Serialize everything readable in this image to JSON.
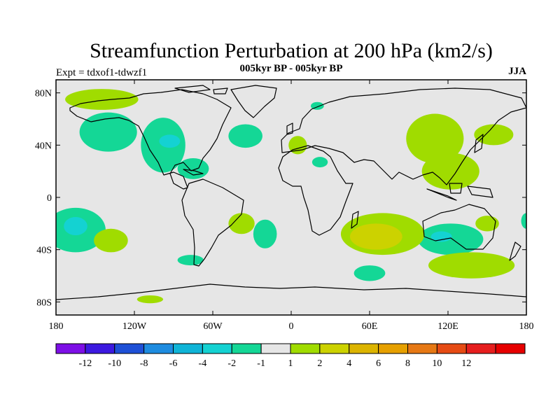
{
  "chart_data": {
    "type": "heatmap",
    "title": "Streamfunction Perturbation at 200 hPa (km2/s)",
    "subtitle_center": "005kyr BP - 005kyr BP",
    "subtitle_left": "Expt = tdxof1-tdwzf1",
    "subtitle_right": "JJA",
    "x_range": [
      -180,
      180
    ],
    "y_range": [
      -90,
      90
    ],
    "x_ticks": [
      {
        "value": -180,
        "label": "180"
      },
      {
        "value": -120,
        "label": "120W"
      },
      {
        "value": -60,
        "label": "60W"
      },
      {
        "value": 0,
        "label": "0"
      },
      {
        "value": 60,
        "label": "60E"
      },
      {
        "value": 120,
        "label": "120E"
      },
      {
        "value": 180,
        "label": "180"
      }
    ],
    "y_ticks": [
      {
        "value": 80,
        "label": "80N"
      },
      {
        "value": 40,
        "label": "40N"
      },
      {
        "value": 0,
        "label": "0"
      },
      {
        "value": -40,
        "label": "40S"
      },
      {
        "value": -80,
        "label": "80S"
      }
    ],
    "colorbar": {
      "labels": [
        "-12",
        "-10",
        "-8",
        "-6",
        "-4",
        "-2",
        "-1",
        "1",
        "2",
        "4",
        "6",
        "8",
        "10",
        "12"
      ],
      "colors": [
        "#7d0fe6",
        "#3c19e0",
        "#1e50d6",
        "#1e8ce0",
        "#0fb4d7",
        "#14d2d2",
        "#14d796",
        "#e6e6e6",
        "#a0dc00",
        "#ccd200",
        "#dcb400",
        "#e6a000",
        "#e67814",
        "#e64b14",
        "#e61e1e",
        "#e60000"
      ]
    },
    "anomalies": [
      {
        "lon": -140,
        "lat": 50,
        "dlon": 22,
        "dlat": 15,
        "level": "-1"
      },
      {
        "lon": -98,
        "lat": 40,
        "dlon": 17,
        "dlat": 21,
        "level": "-1"
      },
      {
        "lon": -93,
        "lat": 43,
        "dlon": 8,
        "dlat": 5,
        "level": "-2"
      },
      {
        "lon": -75,
        "lat": 22,
        "dlon": 12,
        "dlat": 8,
        "level": "-1"
      },
      {
        "lon": -35,
        "lat": 47,
        "dlon": 13,
        "dlat": 9,
        "level": "-1"
      },
      {
        "lon": -165,
        "lat": -25,
        "dlon": 23,
        "dlat": 17,
        "level": "-1"
      },
      {
        "lon": -165,
        "lat": -22,
        "dlon": 9,
        "dlat": 7,
        "level": "-2"
      },
      {
        "lon": -20,
        "lat": -28,
        "dlon": 9,
        "dlat": 11,
        "level": "-1"
      },
      {
        "lon": 60,
        "lat": -58,
        "dlon": 12,
        "dlat": 6,
        "level": "-1"
      },
      {
        "lon": 22,
        "lat": 27,
        "dlon": 6,
        "dlat": 4,
        "level": "-1"
      },
      {
        "lon": -77,
        "lat": -48,
        "dlon": 10,
        "dlat": 4,
        "level": "-1"
      },
      {
        "lon": 20,
        "lat": 70,
        "dlon": 5,
        "dlat": 3,
        "level": "-1"
      },
      {
        "lon": 122,
        "lat": -32,
        "dlon": 25,
        "dlat": 12,
        "level": "-1"
      },
      {
        "lon": 180,
        "lat": -18,
        "dlon": 4,
        "dlat": 6,
        "level": "-1"
      },
      {
        "lon": 115,
        "lat": -30,
        "dlon": 8,
        "dlat": 4,
        "level": "-2"
      },
      {
        "lon": -145,
        "lat": 75,
        "dlon": 28,
        "dlat": 8,
        "level": "1"
      },
      {
        "lon": 70,
        "lat": -28,
        "dlon": 32,
        "dlat": 16,
        "level": "1"
      },
      {
        "lon": 65,
        "lat": -30,
        "dlon": 20,
        "dlat": 10,
        "level": "2"
      },
      {
        "lon": 110,
        "lat": 45,
        "dlon": 22,
        "dlat": 19,
        "level": "1"
      },
      {
        "lon": 122,
        "lat": 20,
        "dlon": 22,
        "dlat": 14,
        "level": "1"
      },
      {
        "lon": 155,
        "lat": 48,
        "dlon": 15,
        "dlat": 8,
        "level": "1"
      },
      {
        "lon": 5,
        "lat": 40,
        "dlon": 7,
        "dlat": 7,
        "level": "1"
      },
      {
        "lon": -138,
        "lat": -33,
        "dlon": 13,
        "dlat": 9,
        "level": "1"
      },
      {
        "lon": -38,
        "lat": -20,
        "dlon": 10,
        "dlat": 8,
        "level": "1"
      },
      {
        "lon": -108,
        "lat": -78,
        "dlon": 10,
        "dlat": 3,
        "level": "1"
      },
      {
        "lon": 138,
        "lat": -52,
        "dlon": 33,
        "dlat": 10,
        "level": "1"
      },
      {
        "lon": 150,
        "lat": -20,
        "dlon": 9,
        "dlat": 6,
        "level": "1"
      }
    ]
  }
}
